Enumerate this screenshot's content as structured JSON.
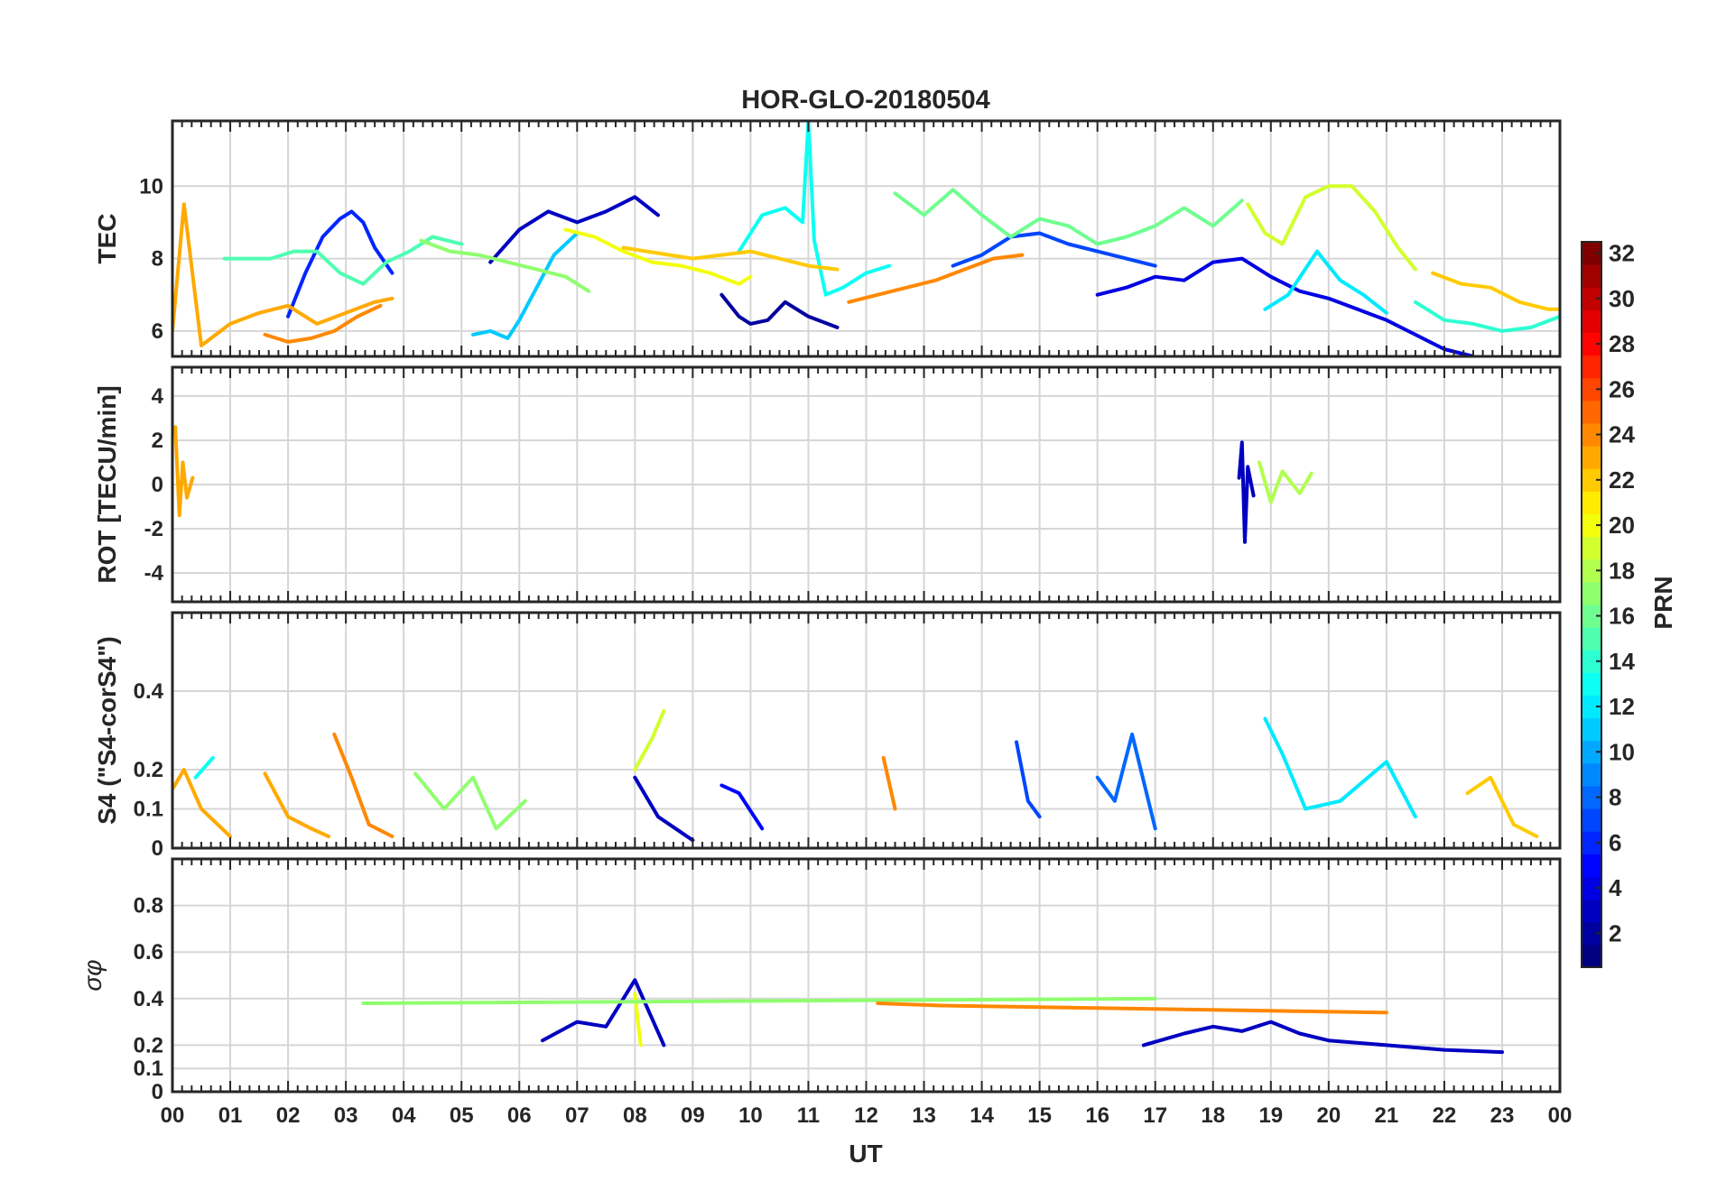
{
  "chart_data": {
    "type": "line",
    "title": "HOR-GLO-20180504",
    "xlabel": "UT",
    "xlim": [
      0,
      24
    ],
    "x_tick_labels": [
      "00",
      "01",
      "02",
      "03",
      "04",
      "05",
      "06",
      "07",
      "08",
      "09",
      "10",
      "11",
      "12",
      "13",
      "14",
      "15",
      "16",
      "17",
      "18",
      "19",
      "20",
      "21",
      "22",
      "23",
      "00"
    ],
    "colorbar": {
      "label": "PRN",
      "range": [
        1,
        32
      ],
      "ticks": [
        2,
        4,
        6,
        8,
        10,
        12,
        14,
        16,
        18,
        20,
        22,
        24,
        26,
        28,
        30,
        32
      ],
      "colormap": "jet"
    },
    "panels": [
      {
        "id": "tec",
        "ylabel": "TEC",
        "ylim": [
          5.3,
          11.8
        ],
        "yticks": [
          6,
          8,
          10
        ],
        "series": [
          {
            "prn": 3,
            "x": [
              5.5,
              6.0,
              6.5,
              7.0,
              7.5,
              8.0,
              8.4
            ],
            "y": [
              7.9,
              8.8,
              9.3,
              9.0,
              9.3,
              9.7,
              9.2
            ]
          },
          {
            "prn": 2,
            "x": [
              9.5,
              9.8,
              10.0,
              10.3,
              10.6,
              11.0,
              11.5
            ],
            "y": [
              7.0,
              6.4,
              6.2,
              6.3,
              6.8,
              6.4,
              6.1
            ]
          },
          {
            "prn": 4,
            "x": [
              16.0,
              16.5,
              17.0,
              17.5,
              18.0,
              18.5,
              19.0,
              19.5,
              20.0,
              20.5,
              21.0,
              21.5,
              22.0,
              22.5
            ],
            "y": [
              7.0,
              7.2,
              7.5,
              7.4,
              7.9,
              8.0,
              7.5,
              7.1,
              6.9,
              6.6,
              6.3,
              5.9,
              5.5,
              5.3
            ]
          },
          {
            "prn": 6,
            "x": [
              2.0,
              2.3,
              2.6,
              2.9,
              3.1,
              3.3,
              3.5,
              3.8
            ],
            "y": [
              6.4,
              7.6,
              8.6,
              9.1,
              9.3,
              9.0,
              8.3,
              7.6
            ]
          },
          {
            "prn": 7,
            "x": [
              13.5,
              14.0,
              14.5,
              15.0,
              15.5,
              16.0,
              16.5,
              17.0
            ],
            "y": [
              7.8,
              8.1,
              8.6,
              8.7,
              8.4,
              8.2,
              8.0,
              7.8
            ]
          },
          {
            "prn": 11,
            "x": [
              5.2,
              5.5,
              5.8,
              6.0,
              6.3,
              6.6,
              7.0
            ],
            "y": [
              5.9,
              6.0,
              5.8,
              6.3,
              7.2,
              8.1,
              8.7
            ]
          },
          {
            "prn": 12,
            "x": [
              18.9,
              19.3,
              19.8,
              20.2,
              20.6,
              21.0
            ],
            "y": [
              6.6,
              7.0,
              8.2,
              7.4,
              7.0,
              6.5
            ]
          },
          {
            "prn": 13,
            "x": [
              9.8,
              10.2,
              10.6,
              10.9,
              11.0,
              11.1,
              11.3,
              11.6,
              12.0,
              12.4
            ],
            "y": [
              8.2,
              9.2,
              9.4,
              9.0,
              11.8,
              8.5,
              7.0,
              7.2,
              7.6,
              7.8
            ]
          },
          {
            "prn": 14,
            "x": [
              21.5,
              22.0,
              22.5,
              23.0,
              23.5,
              24.0
            ],
            "y": [
              6.8,
              6.3,
              6.2,
              6.0,
              6.1,
              6.4
            ]
          },
          {
            "prn": 15,
            "x": [
              0.9,
              1.3,
              1.7,
              2.1,
              2.5,
              2.9,
              3.3,
              3.7,
              4.1,
              4.5,
              5.0
            ],
            "y": [
              8.0,
              8.0,
              8.0,
              8.2,
              8.2,
              7.6,
              7.3,
              7.9,
              8.2,
              8.6,
              8.4
            ]
          },
          {
            "prn": 16,
            "x": [
              12.5,
              13.0,
              13.5,
              14.0,
              14.5,
              15.0,
              15.5,
              16.0,
              16.5,
              17.0,
              17.5,
              18.0,
              18.5
            ],
            "y": [
              9.8,
              9.2,
              9.9,
              9.2,
              8.6,
              9.1,
              8.9,
              8.4,
              8.6,
              8.9,
              9.4,
              8.9,
              9.6
            ]
          },
          {
            "prn": 17,
            "x": [
              4.3,
              4.8,
              5.3,
              5.8,
              6.3,
              6.8,
              7.2
            ],
            "y": [
              8.5,
              8.2,
              8.1,
              7.9,
              7.7,
              7.5,
              7.1
            ]
          },
          {
            "prn": 19,
            "x": [
              18.6,
              18.9,
              19.2,
              19.6,
              20.0,
              20.4,
              20.8,
              21.2,
              21.5
            ],
            "y": [
              9.5,
              8.7,
              8.4,
              9.7,
              10.0,
              10.0,
              9.3,
              8.3,
              7.7
            ]
          },
          {
            "prn": 20,
            "x": [
              6.8,
              7.3,
              7.8,
              8.3,
              8.8,
              9.3,
              9.8,
              10.0
            ],
            "y": [
              8.8,
              8.6,
              8.2,
              7.9,
              7.8,
              7.6,
              7.3,
              7.5
            ]
          },
          {
            "prn": 23,
            "x": [
              0.0,
              0.2,
              0.5,
              1.0,
              1.5,
              2.0,
              2.5,
              3.0,
              3.5,
              3.8
            ],
            "y": [
              6.0,
              9.5,
              5.6,
              6.2,
              6.5,
              6.7,
              6.2,
              6.5,
              6.8,
              6.9
            ]
          },
          {
            "prn": 22,
            "x": [
              7.8,
              8.2,
              8.6,
              9.0,
              9.5,
              10.0,
              10.5,
              11.0,
              11.5
            ],
            "y": [
              8.3,
              8.2,
              8.1,
              8.0,
              8.1,
              8.2,
              8.0,
              7.8,
              7.7
            ]
          },
          {
            "prn": 24,
            "x": [
              1.6,
              2.0,
              2.4,
              2.8,
              3.2,
              3.6
            ],
            "y": [
              5.9,
              5.7,
              5.8,
              6.0,
              6.4,
              6.7
            ]
          },
          {
            "prn": 24,
            "x": [
              11.7,
              12.2,
              12.7,
              13.2,
              13.7,
              14.2,
              14.7
            ],
            "y": [
              6.8,
              7.0,
              7.2,
              7.4,
              7.7,
              8.0,
              8.1
            ]
          },
          {
            "prn": 22,
            "x": [
              21.8,
              22.3,
              22.8,
              23.3,
              23.8,
              24.0
            ],
            "y": [
              7.6,
              7.3,
              7.2,
              6.8,
              6.6,
              6.6
            ]
          }
        ]
      },
      {
        "id": "rot",
        "ylabel": "ROT [TECU/min]",
        "ylim": [
          -5.3,
          5.3
        ],
        "yticks": [
          -4,
          -2,
          0,
          2,
          4
        ],
        "series": [
          {
            "prn": 23,
            "x": [
              0.05,
              0.12,
              0.18,
              0.25,
              0.35
            ],
            "y": [
              2.6,
              -1.4,
              1.0,
              -0.6,
              0.3
            ]
          },
          {
            "prn": 3,
            "x": [
              18.45,
              18.5,
              18.55,
              18.6,
              18.7
            ],
            "y": [
              0.3,
              1.9,
              -2.6,
              0.8,
              -0.5
            ]
          },
          {
            "prn": 18,
            "x": [
              18.8,
              19.0,
              19.2,
              19.5,
              19.7
            ],
            "y": [
              1.0,
              -0.8,
              0.6,
              -0.4,
              0.5
            ]
          }
        ]
      },
      {
        "id": "s4",
        "ylabel": "S4 (\"S4-corS4\")",
        "ylim": [
          0,
          0.6
        ],
        "yticks": [
          0,
          0.1,
          0.2,
          0.4
        ],
        "series": [
          {
            "prn": 23,
            "x": [
              0.0,
              0.2,
              0.5,
              1.0
            ],
            "y": [
              0.15,
              0.2,
              0.1,
              0.03
            ]
          },
          {
            "prn": 13,
            "x": [
              0.4,
              0.7
            ],
            "y": [
              0.18,
              0.23
            ]
          },
          {
            "prn": 23,
            "x": [
              1.6,
              2.0,
              2.4,
              2.7
            ],
            "y": [
              0.19,
              0.08,
              0.05,
              0.03
            ]
          },
          {
            "prn": 24,
            "x": [
              2.8,
              3.1,
              3.4,
              3.8
            ],
            "y": [
              0.29,
              0.18,
              0.06,
              0.03
            ]
          },
          {
            "prn": 17,
            "x": [
              4.2,
              4.7,
              5.2,
              5.6,
              6.1
            ],
            "y": [
              0.19,
              0.1,
              0.18,
              0.05,
              0.12
            ]
          },
          {
            "prn": 19,
            "x": [
              8.0,
              8.3,
              8.5
            ],
            "y": [
              0.2,
              0.28,
              0.35
            ]
          },
          {
            "prn": 3,
            "x": [
              8.0,
              8.4,
              9.0
            ],
            "y": [
              0.18,
              0.08,
              0.02
            ]
          },
          {
            "prn": 5,
            "x": [
              9.5,
              9.8,
              10.2
            ],
            "y": [
              0.16,
              0.14,
              0.05
            ]
          },
          {
            "prn": 24,
            "x": [
              12.3,
              12.5
            ],
            "y": [
              0.23,
              0.1
            ]
          },
          {
            "prn": 7,
            "x": [
              14.6,
              14.8,
              15.0
            ],
            "y": [
              0.27,
              0.12,
              0.08
            ]
          },
          {
            "prn": 8,
            "x": [
              16.0,
              16.3,
              16.6,
              17.0
            ],
            "y": [
              0.18,
              0.12,
              0.29,
              0.05
            ]
          },
          {
            "prn": 12,
            "x": [
              18.9,
              19.2,
              19.6,
              20.2,
              21.0,
              21.5
            ],
            "y": [
              0.33,
              0.24,
              0.1,
              0.12,
              0.22,
              0.08
            ]
          },
          {
            "prn": 22,
            "x": [
              22.4,
              22.8,
              23.2,
              23.6
            ],
            "y": [
              0.14,
              0.18,
              0.06,
              0.03
            ]
          }
        ]
      },
      {
        "id": "sigphi",
        "ylabel": "σφ",
        "ylim": [
          0,
          1.0
        ],
        "yticks": [
          0,
          0.1,
          0.2,
          0.4,
          0.6,
          0.8
        ],
        "series": [
          {
            "prn": 3,
            "x": [
              6.4,
              7.0,
              7.5,
              8.0,
              8.5
            ],
            "y": [
              0.22,
              0.3,
              0.28,
              0.48,
              0.2
            ]
          },
          {
            "prn": 3,
            "x": [
              16.8,
              17.5,
              18.0,
              18.5,
              19.0,
              19.5,
              20.0,
              21.0,
              22.0,
              23.0
            ],
            "y": [
              0.2,
              0.25,
              0.28,
              0.26,
              0.3,
              0.25,
              0.22,
              0.2,
              0.18,
              0.17
            ]
          },
          {
            "prn": 20,
            "x": [
              8.0,
              8.1
            ],
            "y": [
              0.42,
              0.2
            ]
          },
          {
            "prn": 17,
            "x": [
              3.3,
              17.0
            ],
            "y": [
              0.38,
              0.4
            ]
          },
          {
            "prn": 24,
            "x": [
              12.2,
              13.3,
              21.0
            ],
            "y": [
              0.38,
              0.37,
              0.34
            ]
          }
        ]
      }
    ]
  }
}
